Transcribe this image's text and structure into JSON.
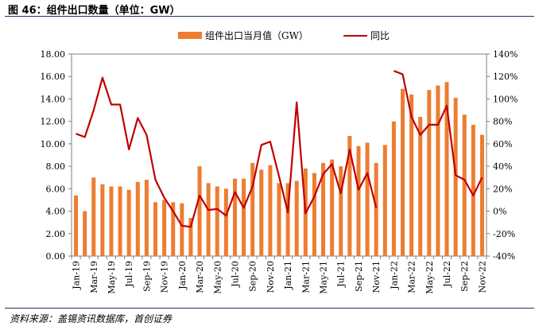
{
  "figure": {
    "title": "图 46：组件出口数量（单位：GW）",
    "source": "资料来源：盖锡资讯数据库，首创证券"
  },
  "chart_data": {
    "type": "bar",
    "categories": [
      "Jan-19",
      "Feb-19",
      "Mar-19",
      "Apr-19",
      "May-19",
      "Jun-19",
      "Jul-19",
      "Aug-19",
      "Sep-19",
      "Oct-19",
      "Nov-19",
      "Dec-19",
      "Jan-20",
      "Feb-20",
      "Mar-20",
      "Apr-20",
      "May-20",
      "Jun-20",
      "Jul-20",
      "Aug-20",
      "Sep-20",
      "Oct-20",
      "Nov-20",
      "Dec-20",
      "Jan-21",
      "Feb-21",
      "Mar-21",
      "Apr-21",
      "May-21",
      "Jun-21",
      "Jul-21",
      "Aug-21",
      "Sep-21",
      "Oct-21",
      "Nov-21",
      "Dec-21",
      "Jan-22",
      "Feb-22",
      "Mar-22",
      "Apr-22",
      "May-22",
      "Jun-22",
      "Jul-22",
      "Aug-22",
      "Sep-22",
      "Oct-22",
      "Nov-22"
    ],
    "x_tick_labels": [
      "Jan-19",
      "Mar-19",
      "May-19",
      "Jul-19",
      "Sep-19",
      "Nov-19",
      "Jan-20",
      "Mar-20",
      "May-20",
      "Jul-20",
      "Sep-20",
      "Nov-20",
      "Jan-21",
      "Mar-21",
      "May-21",
      "Jul-21",
      "Sep-21",
      "Nov-21",
      "Jan-22",
      "Mar-22",
      "May-22",
      "Jul-22",
      "Sep-22",
      "Nov-22"
    ],
    "series": [
      {
        "name": "组件出口当月值（GW）",
        "type": "bar",
        "axis": "left",
        "color": "#ed7d31",
        "values": [
          5.4,
          4.0,
          7.0,
          6.4,
          6.2,
          6.2,
          5.9,
          6.6,
          6.8,
          4.8,
          5.0,
          4.8,
          4.7,
          3.4,
          8.0,
          6.5,
          6.2,
          6.0,
          6.9,
          6.9,
          8.3,
          7.7,
          8.1,
          6.5,
          6.5,
          6.7,
          7.8,
          7.4,
          8.3,
          8.6,
          8.0,
          10.7,
          9.8,
          10.1,
          8.3,
          9.9,
          12.0,
          14.9,
          14.4,
          12.4,
          14.8,
          15.2,
          15.5,
          14.1,
          12.6,
          11.7,
          10.8
        ]
      },
      {
        "name": "同比",
        "type": "line",
        "axis": "right",
        "color": "#c00000",
        "values": [
          69,
          66,
          90,
          119,
          95,
          95,
          55,
          83,
          68,
          28,
          12,
          0,
          -13,
          -14,
          14,
          1,
          2,
          -4,
          17,
          3,
          22,
          59,
          62,
          31,
          -1,
          97,
          -2,
          13,
          33,
          42,
          16,
          55,
          19,
          34,
          3,
          null,
          125,
          122,
          84,
          68,
          77,
          77,
          94,
          32,
          28,
          14,
          30
        ]
      }
    ],
    "y_left": {
      "min": 0,
      "max": 18,
      "step": 2,
      "tick_labels": [
        "0.00",
        "2.00",
        "4.00",
        "6.00",
        "8.00",
        "10.00",
        "12.00",
        "14.00",
        "16.00",
        "18.00"
      ]
    },
    "y_right": {
      "min": -40,
      "max": 140,
      "step": 20,
      "tick_labels": [
        "-40%",
        "-20%",
        "0%",
        "20%",
        "40%",
        "60%",
        "80%",
        "100%",
        "120%",
        "140%"
      ]
    },
    "legend_position": "top-center",
    "grid": false
  }
}
